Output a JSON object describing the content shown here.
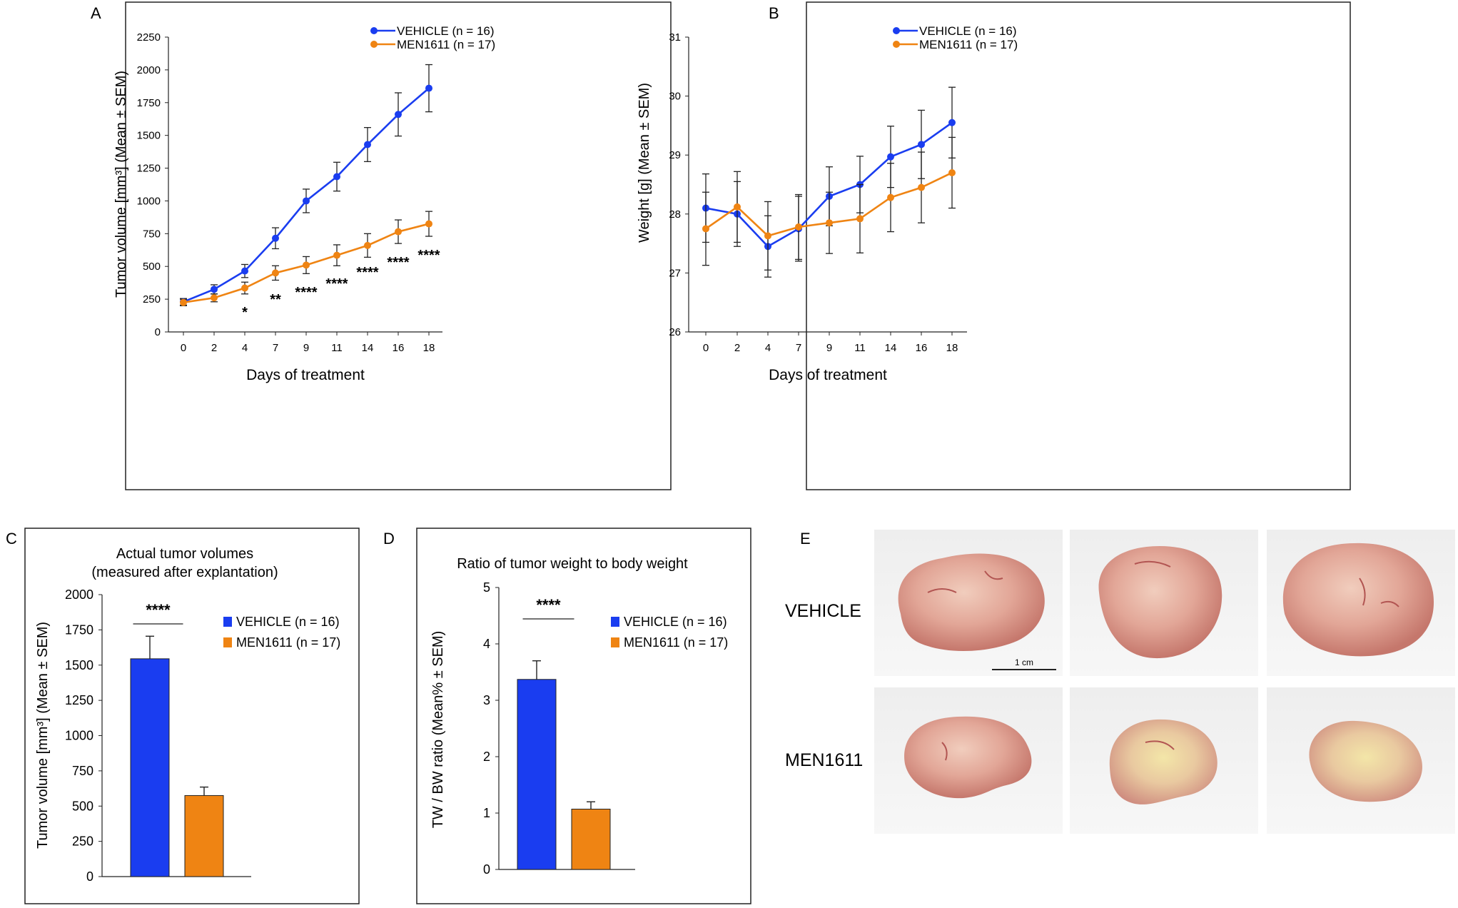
{
  "colors": {
    "vehicle": "#1a3df0",
    "men": "#ef8413",
    "axis": "#222222",
    "err": "#222222"
  },
  "panel_labels": [
    "A",
    "B",
    "C",
    "D",
    "E"
  ],
  "chart_data": [
    {
      "id": "A",
      "type": "line",
      "title": "",
      "xlabel": "Days of treatment",
      "ylabel": "Tumor volume [mm³] (Mean ± SEM)",
      "categories": [
        "0",
        "2",
        "4",
        "7",
        "9",
        "11",
        "14",
        "16",
        "18"
      ],
      "ylim": [
        0,
        2250
      ],
      "yticks": [
        0,
        250,
        500,
        750,
        1000,
        1250,
        1500,
        1750,
        2000,
        2250
      ],
      "legend": [
        "VEHICLE (n = 16)",
        "MEN1611 (n = 17)"
      ],
      "series": [
        {
          "name": "VEHICLE (n = 16)",
          "color": "vehicle",
          "values": [
            230,
            325,
            465,
            715,
            1000,
            1185,
            1430,
            1660,
            1860
          ],
          "errors": [
            25,
            35,
            50,
            80,
            90,
            110,
            130,
            165,
            180
          ]
        },
        {
          "name": "MEN1611 (n = 17)",
          "color": "men",
          "values": [
            225,
            260,
            335,
            450,
            510,
            585,
            660,
            765,
            825
          ],
          "errors": [
            25,
            30,
            45,
            55,
            65,
            80,
            90,
            90,
            95
          ]
        }
      ],
      "annotations": [
        "",
        "",
        "*",
        "**",
        "****",
        "****",
        "****",
        "****",
        "****"
      ]
    },
    {
      "id": "B",
      "type": "line",
      "title": "",
      "xlabel": "Days of treatment",
      "ylabel": "Weight [g] (Mean ± SEM)",
      "categories": [
        "0",
        "2",
        "4",
        "7",
        "9",
        "11",
        "14",
        "16",
        "18"
      ],
      "ylim": [
        26,
        31
      ],
      "yticks": [
        26,
        27,
        28,
        29,
        30,
        31
      ],
      "legend": [
        "VEHICLE (n = 16)",
        "MEN1611 (n = 17)"
      ],
      "series": [
        {
          "name": "VEHICLE (n = 16)",
          "color": "vehicle",
          "values": [
            28.1,
            28.0,
            27.45,
            27.75,
            28.3,
            28.5,
            28.97,
            29.18,
            29.55
          ],
          "errors": [
            0.58,
            0.55,
            0.52,
            0.55,
            0.5,
            0.48,
            0.52,
            0.58,
            0.6
          ]
        },
        {
          "name": "MEN1611 (n = 17)",
          "color": "men",
          "values": [
            27.75,
            28.12,
            27.63,
            27.78,
            27.85,
            27.92,
            28.28,
            28.45,
            28.7
          ],
          "errors": [
            0.62,
            0.6,
            0.58,
            0.55,
            0.52,
            0.58,
            0.58,
            0.6,
            0.6
          ]
        }
      ],
      "annotations": []
    },
    {
      "id": "C",
      "type": "bar",
      "title": "Actual tumor volumes",
      "subtitle": "(measured after explantation)",
      "xlabel": "",
      "ylabel": "Tumor volume [mm³] (Mean ± SEM)",
      "categories": [
        "VEHICLE (n = 16)",
        "MEN1611 (n = 17)"
      ],
      "values": [
        1545,
        575
      ],
      "errors": [
        160,
        60
      ],
      "ylim": [
        0,
        2000
      ],
      "yticks": [
        0,
        250,
        500,
        750,
        1000,
        1250,
        1500,
        1750,
        2000
      ],
      "significance": "****",
      "legend": [
        "VEHICLE (n = 16)",
        "MEN1611 (n = 17)"
      ]
    },
    {
      "id": "D",
      "type": "bar",
      "title": "Ratio of tumor weight to body weight",
      "xlabel": "",
      "ylabel": "TW / BW ratio (Mean% ± SEM)",
      "categories": [
        "VEHICLE (n = 16)",
        "MEN1611 (n = 17)"
      ],
      "values": [
        3.37,
        1.07
      ],
      "errors": [
        0.33,
        0.13
      ],
      "ylim": [
        0,
        5
      ],
      "yticks": [
        0,
        1,
        2,
        3,
        4,
        5
      ],
      "significance": "****",
      "legend": [
        "VEHICLE (n = 16)",
        "MEN1611 (n = 17)"
      ]
    }
  ],
  "photos": {
    "rows": [
      "VEHICLE",
      "MEN1611"
    ],
    "scale_label": "1 cm"
  }
}
